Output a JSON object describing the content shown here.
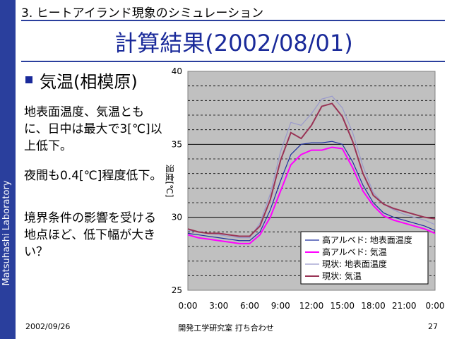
{
  "sidebar": {
    "label": "Matsuhashi Laboratory"
  },
  "header": {
    "section": "3. ヒートアイランド現象のシミュレーション"
  },
  "title": "計算結果(2002/08/01)",
  "bullet": {
    "title": "気温(相模原)"
  },
  "paragraphs": [
    "地表面温度、気温ともに、日中は最大で3[℃]以上低下。",
    "夜間も0.4[℃]程度低下。",
    "境界条件の影響を受ける地点ほど、低下幅が大きい？"
  ],
  "footer": {
    "date": "2002/09/26",
    "center": "開発工学研究室 打ち合わせ",
    "page": "27"
  },
  "chart_data": {
    "type": "line",
    "ylabel": "温度[℃]",
    "ylim": [
      25,
      40
    ],
    "yticks": [
      "25",
      "30",
      "35",
      "40"
    ],
    "xticks": [
      "0:00",
      "3:00",
      "6:00",
      "9:00",
      "12:00",
      "15:00",
      "18:00",
      "21:00",
      "0:00"
    ],
    "x": [
      0,
      1,
      2,
      3,
      4,
      5,
      6,
      7,
      8,
      9,
      10,
      11,
      12,
      13,
      14,
      15,
      16,
      17,
      18,
      19,
      20,
      21,
      22,
      23,
      24
    ],
    "series": [
      {
        "name": "高アルベド: 地表面温度",
        "color": "#1f2f9f",
        "values": [
          28.9,
          28.8,
          28.7,
          28.6,
          28.5,
          28.4,
          28.4,
          29.0,
          30.5,
          32.5,
          34.3,
          35.0,
          35.1,
          35.1,
          35.2,
          35.0,
          33.8,
          32.2,
          31.0,
          30.3,
          30.0,
          29.8,
          29.6,
          29.4,
          29.1
        ]
      },
      {
        "name": "高アルベド: 気温",
        "color": "#ff00ff",
        "values": [
          28.8,
          28.6,
          28.5,
          28.4,
          28.3,
          28.2,
          28.2,
          28.8,
          30.0,
          31.8,
          33.6,
          34.3,
          34.6,
          34.6,
          34.8,
          34.7,
          33.4,
          31.8,
          30.8,
          30.1,
          29.8,
          29.6,
          29.4,
          29.2,
          28.9
        ]
      },
      {
        "name": "現状: 地表面温度",
        "color": "#9999cc",
        "values": [
          29.1,
          29.0,
          28.9,
          28.8,
          28.7,
          28.6,
          28.6,
          29.6,
          31.6,
          34.5,
          36.5,
          36.3,
          37.1,
          38.1,
          38.3,
          37.5,
          35.8,
          33.5,
          31.7,
          30.9,
          30.5,
          30.2,
          30.0,
          29.8,
          29.5
        ]
      },
      {
        "name": "現状: 気温",
        "color": "#993355",
        "values": [
          29.2,
          29.0,
          28.9,
          28.9,
          28.8,
          28.7,
          28.7,
          29.4,
          31.2,
          33.9,
          35.8,
          35.4,
          36.3,
          37.6,
          37.8,
          36.9,
          35.2,
          33.0,
          31.5,
          30.9,
          30.6,
          30.4,
          30.2,
          30.0,
          29.9
        ]
      }
    ],
    "grid": true,
    "legend": "bottom-right"
  }
}
